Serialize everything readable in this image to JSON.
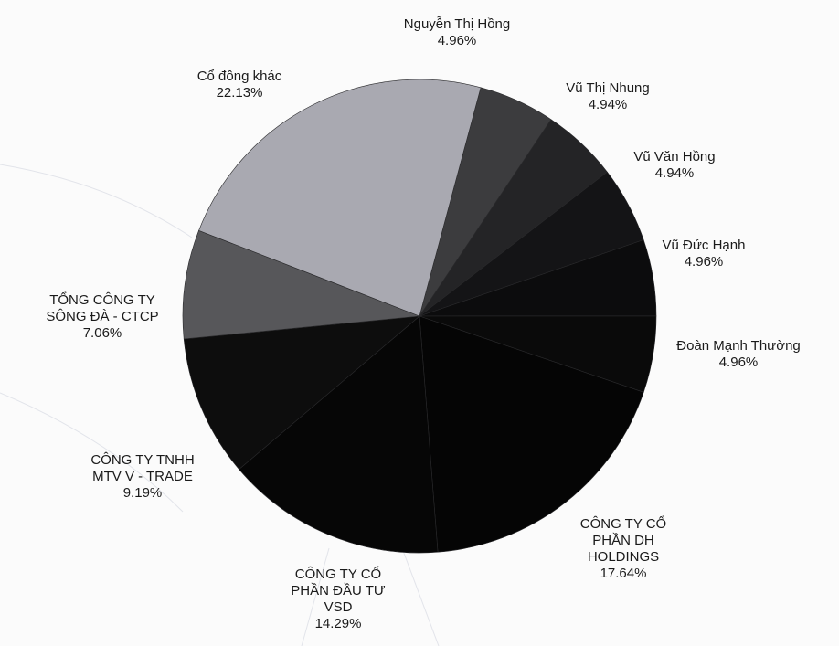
{
  "chart_data": {
    "type": "pie",
    "labels": [
      "Nguyễn Thị Hồng",
      "Vũ Thị Nhung",
      "Vũ Văn Hồng",
      "Vũ Đức Hạnh",
      "Đoàn Mạnh Thường",
      "CÔNG TY CỔ PHẦN DH HOLDINGS",
      "CÔNG TY CỔ PHẦN ĐẦU TƯ VSD",
      "CÔNG TY TNHH MTV V - TRADE",
      "TỔNG CÔNG TY SÔNG ĐÀ - CTCP",
      "Cổ đông khác"
    ],
    "values": [
      4.96,
      4.94,
      4.94,
      4.96,
      4.96,
      17.64,
      14.29,
      9.19,
      7.06,
      22.13
    ],
    "value_labels": [
      "4.96%",
      "4.94%",
      "4.94%",
      "4.96%",
      "4.96%",
      "17.64%",
      "14.29%",
      "9.19%",
      "7.06%",
      "22.13%"
    ],
    "colors": [
      "#3c3c3e",
      "#242426",
      "#141416",
      "#0c0c0d",
      "#0a0a0a",
      "#050505",
      "#060606",
      "#0d0d0d",
      "#57575a",
      "#a9a9b1"
    ]
  }
}
